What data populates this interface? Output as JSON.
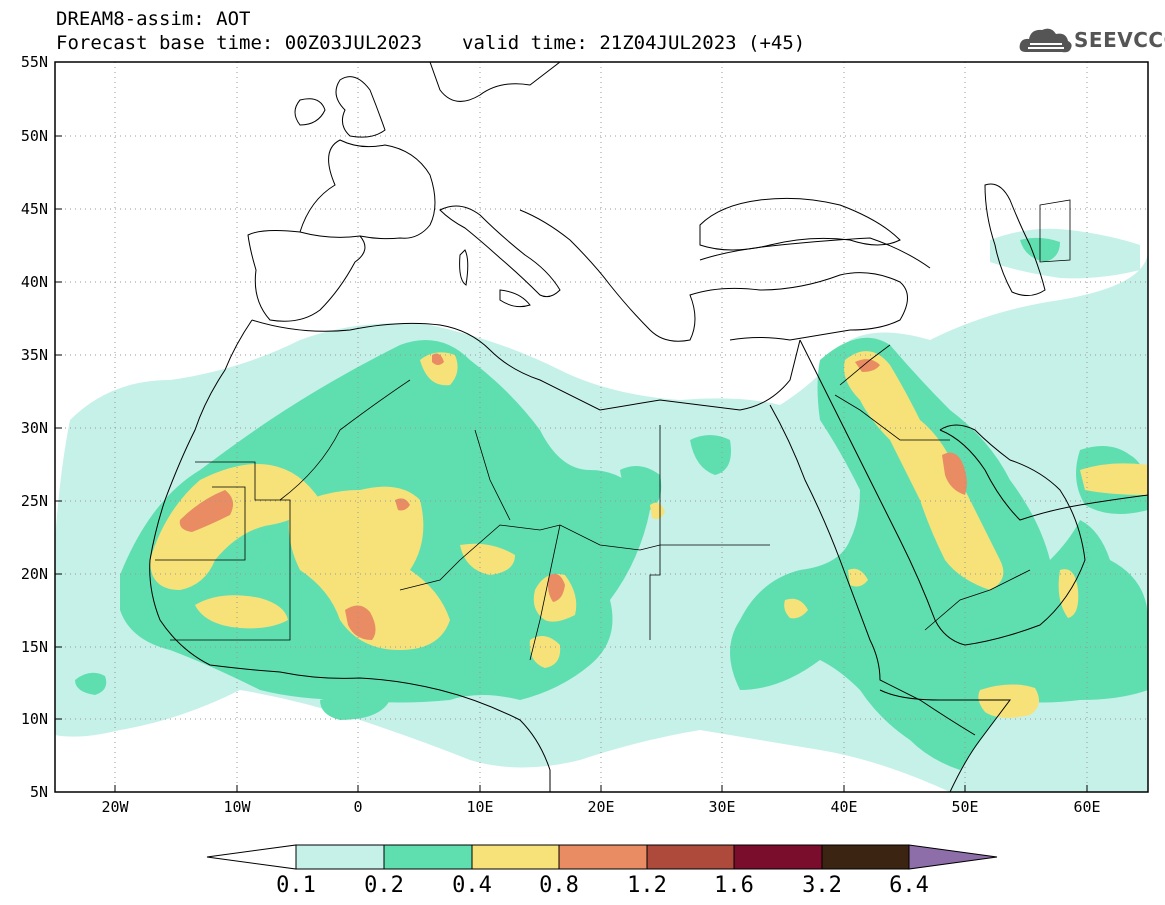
{
  "header": {
    "line1": "DREAM8-assim: AOT",
    "base_time": "Forecast base time: 00Z03JUL2023",
    "valid_time": "valid time: 21Z04JUL2023 (+45)"
  },
  "logo": {
    "text": "SEEVCCC",
    "icon": "cloud-logo-icon"
  },
  "map": {
    "lon_range": [
      -25,
      65
    ],
    "lat_range": [
      5,
      55
    ],
    "lat_ticks": [
      {
        "value": 55,
        "label": "55N"
      },
      {
        "value": 50,
        "label": "50N"
      },
      {
        "value": 45,
        "label": "45N"
      },
      {
        "value": 40,
        "label": "40N"
      },
      {
        "value": 35,
        "label": "35N"
      },
      {
        "value": 30,
        "label": "30N"
      },
      {
        "value": 25,
        "label": "25N"
      },
      {
        "value": 20,
        "label": "20N"
      },
      {
        "value": 15,
        "label": "15N"
      },
      {
        "value": 10,
        "label": "10N"
      },
      {
        "value": 5,
        "label": "5N"
      }
    ],
    "lon_ticks": [
      {
        "value": -20,
        "label": "20W"
      },
      {
        "value": -10,
        "label": "10W"
      },
      {
        "value": 0,
        "label": "0"
      },
      {
        "value": 10,
        "label": "10E"
      },
      {
        "value": 20,
        "label": "20E"
      },
      {
        "value": 30,
        "label": "30E"
      },
      {
        "value": 40,
        "label": "40E"
      },
      {
        "value": 50,
        "label": "50E"
      },
      {
        "value": 60,
        "label": "60E"
      }
    ],
    "gridlines": true
  },
  "colorbar": {
    "colors": [
      "#ffffff",
      "#c6f1e8",
      "#5fdfb0",
      "#f7e27a",
      "#e98c64",
      "#ad4a3b",
      "#7a0c2c",
      "#3b2411",
      "#8e6ea8"
    ],
    "labels": [
      "0.1",
      "0.2",
      "0.4",
      "0.8",
      "1.2",
      "1.6",
      "3.2",
      "6.4"
    ]
  }
}
